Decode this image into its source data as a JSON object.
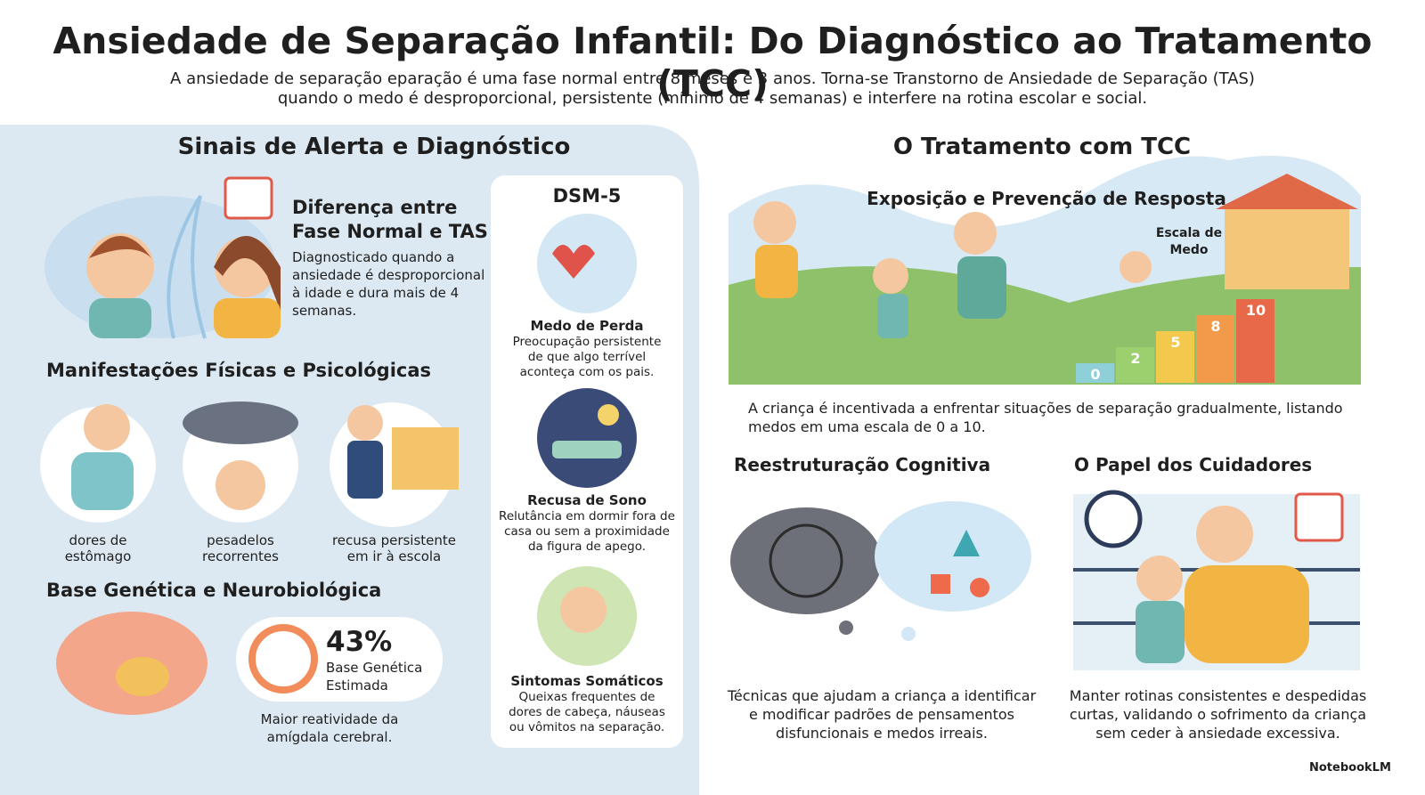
{
  "header": {
    "title": "Ansiedade de Separação Infantil: Do Diagnóstico ao Tratamento (TCC)",
    "subtitle": [
      "A ansiedade de separação eparação é uma fase normal entre 8 meses e 3 anos. Torna-se Transtorno de Ansiedade de Separação (TAS)",
      "quando o medo é desproporcional, persistente (mínimo de 4 semanas) e interfere na rotina escolar e social."
    ]
  },
  "left": {
    "heading": "Sinais de Alerta e Diagnóstico",
    "difference": {
      "title": "Diferença entre Fase Normal e TAS",
      "text": "Diagnosticado quando a ansiedade é desproporcional à idade e dura mais de 4 semanas."
    },
    "manifestations": {
      "heading": "Manifestações Físicas e Psicológicas",
      "items": [
        "dores de estômago",
        "pesadelos recorrentes",
        "recusa persistente em ir à escola"
      ]
    },
    "genetics": {
      "heading": "Base Genética e Neurobiológica",
      "stat": "43%",
      "stat_label": "Base Genética Estimada",
      "note": "Maior reatividade da amígdala cerebral."
    },
    "dsm": {
      "heading": "DSM-5",
      "items": [
        {
          "title": "Medo de Perda",
          "text": "Preocupação persistente de que algo terrível aconteça com os pais."
        },
        {
          "title": "Recusa de Sono",
          "text": "Relutância em dormir fora de casa ou sem a proximidade da figura de apego."
        },
        {
          "title": "Sintomas Somáticos",
          "text": "Queixas frequentes de dores de cabeça, náuseas ou vômitos na separação."
        }
      ]
    }
  },
  "right": {
    "heading": "O Tratamento com TCC",
    "exposure": {
      "title": "Exposição e Prevenção de Resposta",
      "scale_label": "Escala de Medo",
      "scale": [
        0,
        2,
        5,
        8,
        10
      ],
      "text": "A criança é incentivada a enfrentar situações de separação gradualmente, listando medos em uma escala de 0 a 10."
    },
    "cognitive": {
      "title": "Reestruturação Cognitiva",
      "text": "Técnicas que ajudam a criança a identificar e modificar padrões de pensamentos disfuncionais e medos irreais."
    },
    "caregivers": {
      "title": "O Papel dos Cuidadores",
      "text": "Manter rotinas consistentes e despedidas curtas, validando o sofrimento da criança sem ceder à ansiedade excessiva."
    }
  },
  "footer": {
    "brand": "NotebookLM"
  }
}
